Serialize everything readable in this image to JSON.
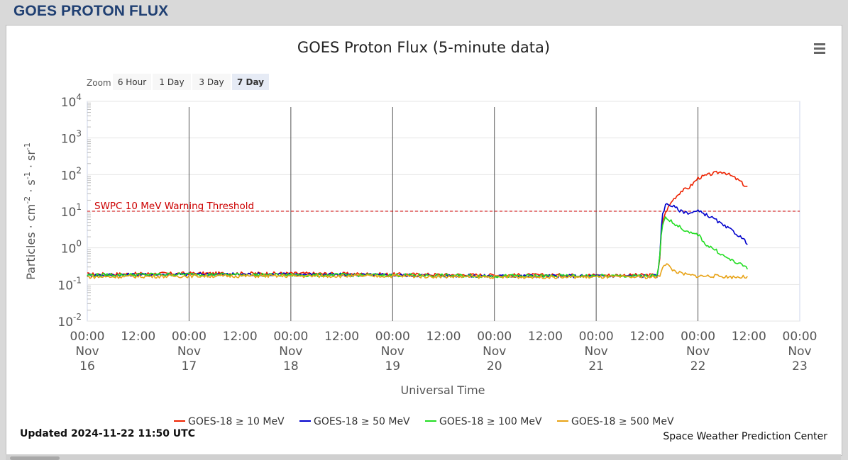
{
  "page": {
    "heading": "GOES PROTON FLUX"
  },
  "chart_data": {
    "type": "line",
    "title": "GOES Proton Flux (5-minute data)",
    "xlabel": "Universal Time",
    "ylabel_parts": [
      "Particles · cm",
      "-2",
      " · s",
      "-1",
      " · sr",
      "-1"
    ],
    "y_scale": "log",
    "ylim": [
      0.01,
      10000
    ],
    "y_ticks": [
      {
        "value": 0.01,
        "base": "10",
        "exp": "-2"
      },
      {
        "value": 0.1,
        "base": "10",
        "exp": "-1"
      },
      {
        "value": 1,
        "base": "10",
        "exp": "0"
      },
      {
        "value": 10,
        "base": "10",
        "exp": "1"
      },
      {
        "value": 100,
        "base": "10",
        "exp": "2"
      },
      {
        "value": 1000,
        "base": "10",
        "exp": "3"
      },
      {
        "value": 10000,
        "base": "10",
        "exp": "4"
      }
    ],
    "xlim": [
      "2024-11-16 00:00",
      "2024-11-23 00:00"
    ],
    "x_ticks": [
      {
        "time": "2024-11-16 00:00",
        "lines": [
          "00:00",
          "Nov",
          "16"
        ]
      },
      {
        "time": "2024-11-16 12:00",
        "lines": [
          "12:00"
        ]
      },
      {
        "time": "2024-11-17 00:00",
        "lines": [
          "00:00",
          "Nov",
          "17"
        ]
      },
      {
        "time": "2024-11-17 12:00",
        "lines": [
          "12:00"
        ]
      },
      {
        "time": "2024-11-18 00:00",
        "lines": [
          "00:00",
          "Nov",
          "18"
        ]
      },
      {
        "time": "2024-11-18 12:00",
        "lines": [
          "12:00"
        ]
      },
      {
        "time": "2024-11-19 00:00",
        "lines": [
          "00:00",
          "Nov",
          "19"
        ]
      },
      {
        "time": "2024-11-19 12:00",
        "lines": [
          "12:00"
        ]
      },
      {
        "time": "2024-11-20 00:00",
        "lines": [
          "00:00",
          "Nov",
          "20"
        ]
      },
      {
        "time": "2024-11-20 12:00",
        "lines": [
          "12:00"
        ]
      },
      {
        "time": "2024-11-21 00:00",
        "lines": [
          "00:00",
          "Nov",
          "21"
        ]
      },
      {
        "time": "2024-11-21 12:00",
        "lines": [
          "12:00"
        ]
      },
      {
        "time": "2024-11-22 00:00",
        "lines": [
          "00:00",
          "Nov",
          "22"
        ]
      },
      {
        "time": "2024-11-22 12:00",
        "lines": [
          "12:00"
        ]
      },
      {
        "time": "2024-11-23 00:00",
        "lines": [
          "00:00",
          "Nov",
          "23"
        ]
      }
    ],
    "threshold": {
      "label": "SWPC 10 MeV Warning Threshold",
      "value": 10,
      "color": "#cc0000"
    },
    "series": [
      {
        "name": "GOES-18 ≥ 10 MeV",
        "color": "#ee2200",
        "points": [
          [
            "2024-11-16 00:00",
            0.19
          ],
          [
            "2024-11-17 00:00",
            0.2
          ],
          [
            "2024-11-18 00:00",
            0.2
          ],
          [
            "2024-11-19 00:00",
            0.19
          ],
          [
            "2024-11-20 00:00",
            0.18
          ],
          [
            "2024-11-21 00:00",
            0.18
          ],
          [
            "2024-11-21 14:30",
            0.18
          ],
          [
            "2024-11-21 15:00",
            0.5
          ],
          [
            "2024-11-21 15:30",
            5
          ],
          [
            "2024-11-21 16:30",
            10
          ],
          [
            "2024-11-21 18:00",
            20
          ],
          [
            "2024-11-21 20:00",
            35
          ],
          [
            "2024-11-21 22:00",
            45
          ],
          [
            "2024-11-22 00:00",
            80
          ],
          [
            "2024-11-22 02:00",
            95
          ],
          [
            "2024-11-22 04:00",
            110
          ],
          [
            "2024-11-22 06:00",
            120
          ],
          [
            "2024-11-22 08:00",
            90
          ],
          [
            "2024-11-22 10:00",
            65
          ],
          [
            "2024-11-22 11:00",
            50
          ],
          [
            "2024-11-22 11:50",
            45
          ]
        ]
      },
      {
        "name": "GOES-18 ≥ 50 MeV",
        "color": "#0000cc",
        "points": [
          [
            "2024-11-16 00:00",
            0.18
          ],
          [
            "2024-11-17 00:00",
            0.19
          ],
          [
            "2024-11-18 00:00",
            0.19
          ],
          [
            "2024-11-19 00:00",
            0.18
          ],
          [
            "2024-11-20 00:00",
            0.17
          ],
          [
            "2024-11-21 00:00",
            0.17
          ],
          [
            "2024-11-21 14:30",
            0.17
          ],
          [
            "2024-11-21 15:00",
            0.6
          ],
          [
            "2024-11-21 15:30",
            8
          ],
          [
            "2024-11-21 16:30",
            16
          ],
          [
            "2024-11-21 18:00",
            14
          ],
          [
            "2024-11-21 20:00",
            10
          ],
          [
            "2024-11-21 22:00",
            9
          ],
          [
            "2024-11-22 00:00",
            10
          ],
          [
            "2024-11-22 02:00",
            8
          ],
          [
            "2024-11-22 04:00",
            6
          ],
          [
            "2024-11-22 06:00",
            4
          ],
          [
            "2024-11-22 08:00",
            3
          ],
          [
            "2024-11-22 10:00",
            2
          ],
          [
            "2024-11-22 11:50",
            1.3
          ]
        ]
      },
      {
        "name": "GOES-18 ≥ 100 MeV",
        "color": "#22dd22",
        "points": [
          [
            "2024-11-16 00:00",
            0.18
          ],
          [
            "2024-11-17 00:00",
            0.19
          ],
          [
            "2024-11-18 00:00",
            0.18
          ],
          [
            "2024-11-19 00:00",
            0.18
          ],
          [
            "2024-11-20 00:00",
            0.17
          ],
          [
            "2024-11-21 00:00",
            0.17
          ],
          [
            "2024-11-21 14:30",
            0.17
          ],
          [
            "2024-11-21 15:00",
            0.6
          ],
          [
            "2024-11-21 15:30",
            4
          ],
          [
            "2024-11-21 16:30",
            7
          ],
          [
            "2024-11-21 18:00",
            5
          ],
          [
            "2024-11-21 20:00",
            3.5
          ],
          [
            "2024-11-21 22:00",
            2.5
          ],
          [
            "2024-11-22 00:00",
            2.3
          ],
          [
            "2024-11-22 02:00",
            1.2
          ],
          [
            "2024-11-22 04:00",
            0.9
          ],
          [
            "2024-11-22 06:00",
            0.6
          ],
          [
            "2024-11-22 08:00",
            0.45
          ],
          [
            "2024-11-22 10:00",
            0.35
          ],
          [
            "2024-11-22 11:30",
            0.3
          ],
          [
            "2024-11-22 11:50",
            0.24
          ]
        ]
      },
      {
        "name": "GOES-18 ≥ 500 MeV",
        "color": "#e8a317",
        "points": [
          [
            "2024-11-16 00:00",
            0.16
          ],
          [
            "2024-11-17 00:00",
            0.17
          ],
          [
            "2024-11-18 00:00",
            0.17
          ],
          [
            "2024-11-19 00:00",
            0.17
          ],
          [
            "2024-11-20 00:00",
            0.16
          ],
          [
            "2024-11-21 00:00",
            0.16
          ],
          [
            "2024-11-21 15:00",
            0.16
          ],
          [
            "2024-11-21 15:30",
            0.3
          ],
          [
            "2024-11-21 16:30",
            0.38
          ],
          [
            "2024-11-21 18:00",
            0.25
          ],
          [
            "2024-11-21 20:00",
            0.2
          ],
          [
            "2024-11-21 22:00",
            0.18
          ],
          [
            "2024-11-22 00:00",
            0.17
          ],
          [
            "2024-11-22 04:00",
            0.17
          ],
          [
            "2024-11-22 08:00",
            0.16
          ],
          [
            "2024-11-22 11:50",
            0.16
          ]
        ]
      }
    ],
    "legend_position": "bottom",
    "grid": true
  },
  "zoom": {
    "label": "Zoom",
    "buttons": [
      {
        "label": "6 Hour",
        "active": false
      },
      {
        "label": "1 Day",
        "active": false
      },
      {
        "label": "3 Day",
        "active": false
      },
      {
        "label": "7 Day",
        "active": true
      }
    ]
  },
  "footer": {
    "updated": "Updated 2024-11-22 11:50 UTC",
    "credit": "Space Weather Prediction Center"
  },
  "menu": {
    "icon": "hamburger-menu-icon"
  }
}
